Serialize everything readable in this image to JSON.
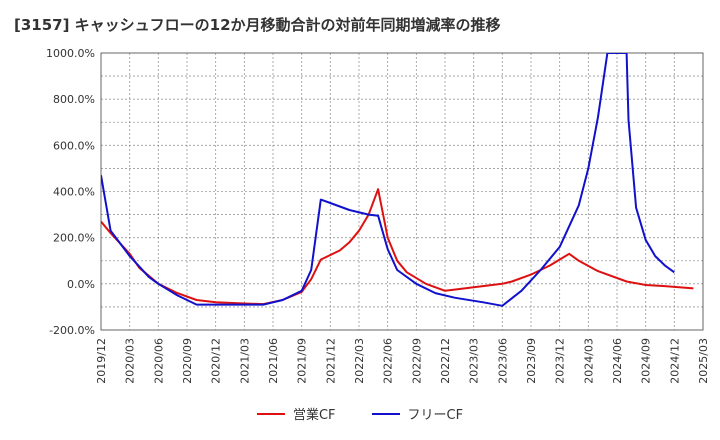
{
  "chart_data": {
    "type": "line",
    "title": "[3157]  キャッシュフローの12か月移動合計の対前年同期増減率の推移",
    "y_unit": "%",
    "ylim": [
      -200,
      1000
    ],
    "y_ticks": [
      -200,
      0,
      200,
      400,
      600,
      800,
      1000
    ],
    "y_tick_labels": [
      "-200.0%",
      "0.0%",
      "200.0%",
      "400.0%",
      "600.0%",
      "800.0%",
      "1000.0%"
    ],
    "x_tick_labels": [
      "2019/12",
      "2020/03",
      "2020/06",
      "2020/09",
      "2020/12",
      "2021/03",
      "2021/06",
      "2021/09",
      "2021/12",
      "2022/03",
      "2022/06",
      "2022/09",
      "2022/12",
      "2023/03",
      "2023/06",
      "2023/09",
      "2023/12",
      "2024/03",
      "2024/06",
      "2024/09",
      "2024/12",
      "2025/03"
    ],
    "x_domain_months": [
      0,
      63
    ],
    "grid": true,
    "legend_position": "bottom",
    "series": [
      {
        "name": "営業CF",
        "color": "#dd1111",
        "points": [
          [
            0,
            270
          ],
          [
            1,
            220
          ],
          [
            3,
            130
          ],
          [
            4,
            70
          ],
          [
            6,
            0
          ],
          [
            8,
            -40
          ],
          [
            10,
            -70
          ],
          [
            12,
            -80
          ],
          [
            15,
            -85
          ],
          [
            17,
            -88
          ],
          [
            19,
            -70
          ],
          [
            21,
            -35
          ],
          [
            22,
            20
          ],
          [
            23,
            105
          ],
          [
            25,
            145
          ],
          [
            26,
            180
          ],
          [
            27,
            230
          ],
          [
            28,
            300
          ],
          [
            29,
            410
          ],
          [
            30,
            200
          ],
          [
            31,
            100
          ],
          [
            32,
            50
          ],
          [
            34,
            0
          ],
          [
            36,
            -30
          ],
          [
            37,
            -25
          ],
          [
            39,
            -15
          ],
          [
            42,
            0
          ],
          [
            43,
            10
          ],
          [
            45,
            40
          ],
          [
            47,
            80
          ],
          [
            49,
            130
          ],
          [
            50,
            100
          ],
          [
            52,
            55
          ],
          [
            55,
            10
          ],
          [
            57,
            -5
          ],
          [
            59,
            -10
          ],
          [
            62,
            -20
          ]
        ]
      },
      {
        "name": "フリーCF",
        "color": "#1111cc",
        "points": [
          [
            0,
            470
          ],
          [
            1,
            230
          ],
          [
            3,
            120
          ],
          [
            5,
            30
          ],
          [
            6,
            0
          ],
          [
            8,
            -50
          ],
          [
            10,
            -90
          ],
          [
            14,
            -90
          ],
          [
            17,
            -90
          ],
          [
            19,
            -70
          ],
          [
            21,
            -30
          ],
          [
            22,
            60
          ],
          [
            23,
            365
          ],
          [
            24,
            350
          ],
          [
            26,
            320
          ],
          [
            28,
            300
          ],
          [
            29,
            295
          ],
          [
            30,
            150
          ],
          [
            31,
            60
          ],
          [
            33,
            0
          ],
          [
            35,
            -40
          ],
          [
            37,
            -60
          ],
          [
            40,
            -80
          ],
          [
            42,
            -95
          ],
          [
            44,
            -30
          ],
          [
            46,
            60
          ],
          [
            48,
            160
          ],
          [
            50,
            340
          ],
          [
            51,
            500
          ],
          [
            52,
            720
          ],
          [
            53,
            1000
          ],
          [
            54,
            1000
          ],
          [
            55,
            1000
          ],
          [
            55.2,
            710
          ],
          [
            56,
            330
          ],
          [
            57,
            190
          ],
          [
            58,
            120
          ],
          [
            59,
            80
          ],
          [
            60,
            50
          ]
        ]
      }
    ]
  }
}
